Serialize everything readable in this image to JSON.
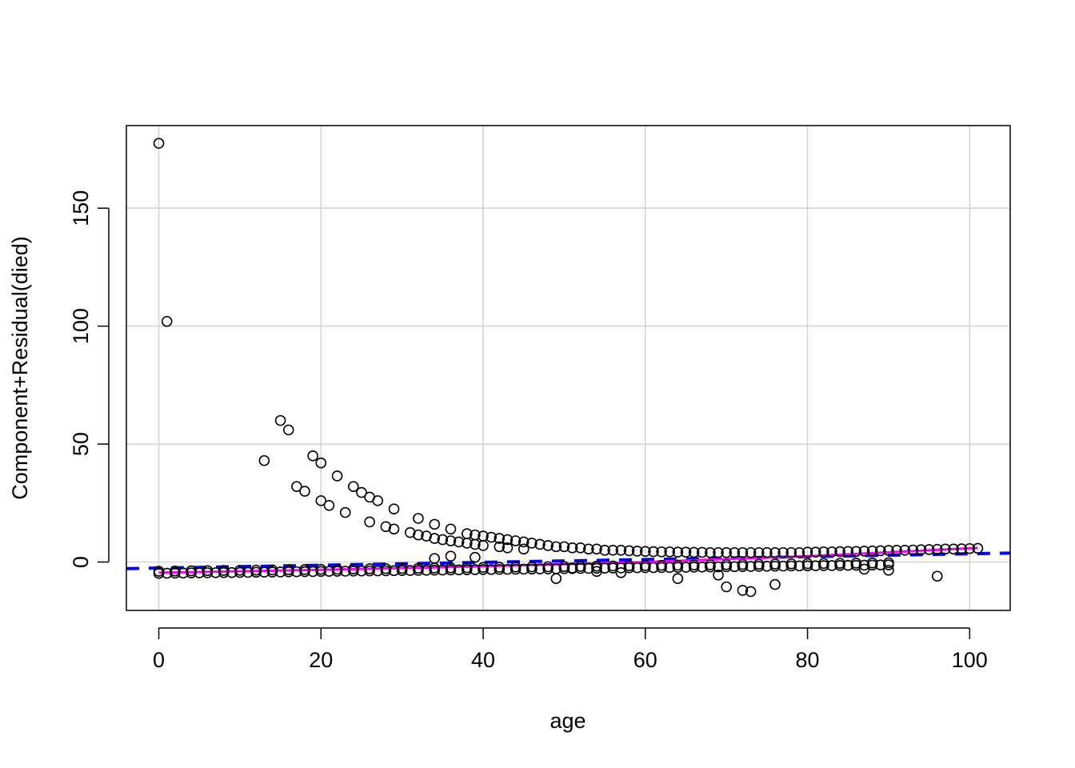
{
  "chart_data": {
    "type": "scatter",
    "title": "",
    "xlabel": "age",
    "ylabel": "Component+Residual(died)",
    "xlim": [
      -4,
      105
    ],
    "ylim": [
      -20.5,
      185
    ],
    "x_ticks": [
      0,
      20,
      40,
      60,
      80,
      100
    ],
    "y_ticks": [
      0,
      50,
      100,
      150
    ],
    "grid": true,
    "colors": {
      "points": "#000000",
      "grid": "#d3d3d3",
      "linear_fit": "#0000ff",
      "smooth": "#ff00ff"
    },
    "linear_fit": {
      "style": "dashed",
      "x": [
        -4,
        105
      ],
      "y": [
        -2.8,
        3.8
      ]
    },
    "smooth": {
      "style": "solid",
      "x": [
        0,
        20,
        40,
        60,
        80,
        101
      ],
      "y": [
        -4.5,
        -3.3,
        -1.8,
        0.0,
        2.5,
        6.0
      ]
    },
    "upper_curve": {
      "points": [
        [
          0,
          177.5
        ],
        [
          1,
          102
        ],
        [
          13,
          43
        ],
        [
          15,
          60
        ],
        [
          16,
          56
        ],
        [
          17,
          32
        ],
        [
          18,
          30
        ],
        [
          19,
          45
        ],
        [
          20,
          42
        ],
        [
          20,
          26
        ],
        [
          21,
          24
        ],
        [
          22,
          36.5
        ],
        [
          23,
          21
        ],
        [
          24,
          32
        ],
        [
          25,
          29.5
        ],
        [
          26,
          27.5
        ],
        [
          26,
          17
        ],
        [
          27,
          26
        ],
        [
          28,
          15
        ],
        [
          29,
          22.5
        ],
        [
          29,
          14
        ],
        [
          31,
          12.5
        ],
        [
          32,
          18.5
        ],
        [
          32,
          11.5
        ],
        [
          33,
          11
        ],
        [
          34,
          16
        ],
        [
          34,
          10
        ],
        [
          35,
          9.5
        ],
        [
          36,
          14
        ],
        [
          36,
          9
        ],
        [
          37,
          8.5
        ],
        [
          38,
          12
        ],
        [
          38,
          8
        ],
        [
          39,
          11.5
        ],
        [
          39,
          7.5
        ],
        [
          40,
          11
        ],
        [
          40,
          7
        ],
        [
          41,
          10.5
        ],
        [
          42,
          10
        ],
        [
          42,
          6.5
        ],
        [
          43,
          9.5
        ],
        [
          43,
          6
        ],
        [
          44,
          9
        ],
        [
          45,
          8.5
        ],
        [
          45,
          5.5
        ],
        [
          46,
          8
        ],
        [
          47,
          7.5
        ],
        [
          48,
          7
        ],
        [
          49,
          6.5
        ],
        [
          50,
          6.5
        ],
        [
          51,
          6
        ],
        [
          52,
          6
        ],
        [
          53,
          5.5
        ],
        [
          54,
          5.5
        ],
        [
          55,
          5
        ],
        [
          56,
          5
        ],
        [
          57,
          5
        ],
        [
          58,
          4.8
        ],
        [
          59,
          4.6
        ],
        [
          60,
          4.5
        ],
        [
          61,
          4.4
        ],
        [
          62,
          4.3
        ],
        [
          63,
          4.3
        ],
        [
          64,
          4.2
        ],
        [
          65,
          4.2
        ],
        [
          66,
          4.1
        ],
        [
          67,
          4.1
        ],
        [
          68,
          4
        ],
        [
          69,
          4
        ],
        [
          70,
          4
        ],
        [
          71,
          4
        ],
        [
          72,
          4
        ],
        [
          73,
          4
        ],
        [
          74,
          4
        ],
        [
          75,
          4
        ],
        [
          76,
          4
        ],
        [
          77,
          4
        ],
        [
          78,
          4
        ],
        [
          79,
          4
        ],
        [
          80,
          4.2
        ],
        [
          81,
          4.2
        ],
        [
          82,
          4.3
        ],
        [
          83,
          4.3
        ],
        [
          84,
          4.4
        ],
        [
          85,
          4.5
        ],
        [
          86,
          4.5
        ],
        [
          87,
          4.6
        ],
        [
          88,
          4.7
        ],
        [
          89,
          4.8
        ],
        [
          90,
          4.9
        ],
        [
          91,
          5
        ],
        [
          92,
          5
        ],
        [
          93,
          5.1
        ],
        [
          94,
          5.2
        ],
        [
          95,
          5.3
        ],
        [
          96,
          5.4
        ],
        [
          97,
          5.5
        ],
        [
          98,
          5.5
        ],
        [
          99,
          5.6
        ],
        [
          100,
          5.7
        ],
        [
          101,
          5.8
        ]
      ]
    },
    "lower_band": {
      "from": 0,
      "to": 90,
      "y_start": -4.8,
      "y_end": -1.2
    },
    "scattered_points": [
      [
        34,
        1.5
      ],
      [
        36,
        2.5
      ],
      [
        39,
        2
      ],
      [
        49,
        -7
      ],
      [
        51,
        -2.5
      ],
      [
        54,
        -4
      ],
      [
        57,
        -4.5
      ],
      [
        64,
        -7
      ],
      [
        69,
        -5.5
      ],
      [
        70,
        -10.5
      ],
      [
        72,
        -12
      ],
      [
        73,
        -12.5
      ],
      [
        76,
        -9.5
      ],
      [
        87,
        -3
      ],
      [
        90,
        -3.5
      ],
      [
        96,
        -6
      ]
    ]
  }
}
